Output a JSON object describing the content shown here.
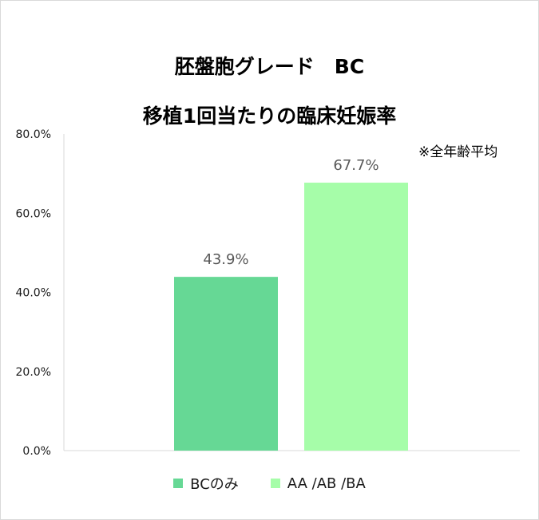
{
  "chart_data": {
    "type": "bar",
    "title_line1": "胚盤胞グレード　BC",
    "title_line2": "移植1回当たりの臨床妊娠率",
    "annotation": "※全年齢平均",
    "categories": [
      "BCのみ",
      "AA /AB /BA"
    ],
    "values": [
      43.9,
      67.7
    ],
    "value_labels": [
      "43.9%",
      "67.7%"
    ],
    "colors": [
      "#66d895",
      "#a6fda9"
    ],
    "label_color": "#595959",
    "ylim": [
      0,
      80
    ],
    "yticks": [
      "0.0%",
      "20.0%",
      "40.0%",
      "60.0%",
      "80.0%"
    ],
    "grid": false,
    "legend_position": "bottom"
  }
}
